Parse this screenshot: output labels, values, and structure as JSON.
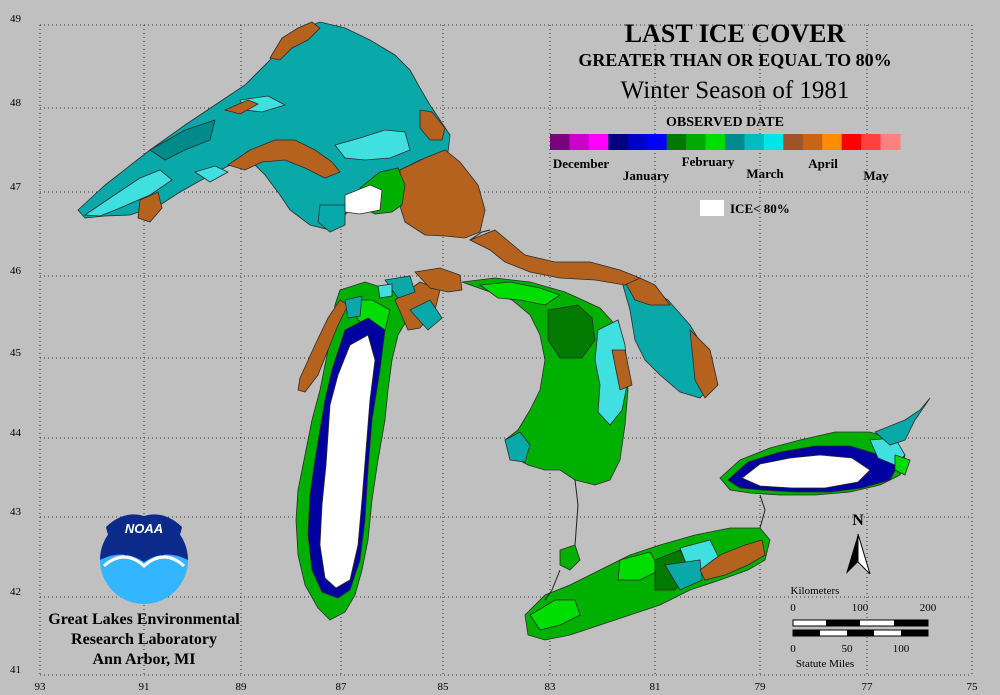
{
  "title": {
    "line1": "LAST ICE COVER",
    "line2": "GREATER THAN OR EQUAL TO 80%",
    "line3": "Winter Season of 1981"
  },
  "legend": {
    "heading": "OBSERVED DATE",
    "months": [
      "December",
      "January",
      "February",
      "March",
      "April",
      "May"
    ],
    "colors": [
      [
        "#7b007b",
        "#cc00cc",
        "#ff00ff"
      ],
      [
        "#000080",
        "#0000cc",
        "#0000ff"
      ],
      [
        "#007700",
        "#00aa00",
        "#00dd00"
      ],
      [
        "#008b8b",
        "#00bcbc",
        "#00e5e5"
      ],
      [
        "#a0522d",
        "#c86414",
        "#ff8c00"
      ],
      [
        "#ff0000",
        "#ff4040",
        "#ff8080"
      ]
    ],
    "ice_label": "ICE< 80%"
  },
  "axes": {
    "lat_labels": [
      "49",
      "48",
      "47",
      "46",
      "45",
      "44",
      "43",
      "42",
      "41"
    ],
    "lon_labels": [
      "93",
      "91",
      "89",
      "87",
      "85",
      "83",
      "81",
      "79",
      "77",
      "75"
    ]
  },
  "noaa": {
    "logo_text": "NOAA"
  },
  "credit": {
    "line1": "Great Lakes Environmental",
    "line2": "Research Laboratory",
    "line3": "Ann Arbor, MI"
  },
  "north_arrow": {
    "label": "N"
  },
  "scale": {
    "km_title": "Kilometers",
    "km_ticks": [
      "0",
      "100",
      "200"
    ],
    "mi_ticks": [
      "0",
      "50",
      "100"
    ],
    "mi_title": "Statute Miles"
  },
  "colors": {
    "background": "#c0c0c0",
    "rust": "#b5621e",
    "teal": "#0aa9a9",
    "teal_light": "#00e0e0",
    "green": "#00b000",
    "green_dark": "#007a00",
    "green_light": "#00e000",
    "navy": "#0000a0",
    "white": "#ffffff"
  }
}
